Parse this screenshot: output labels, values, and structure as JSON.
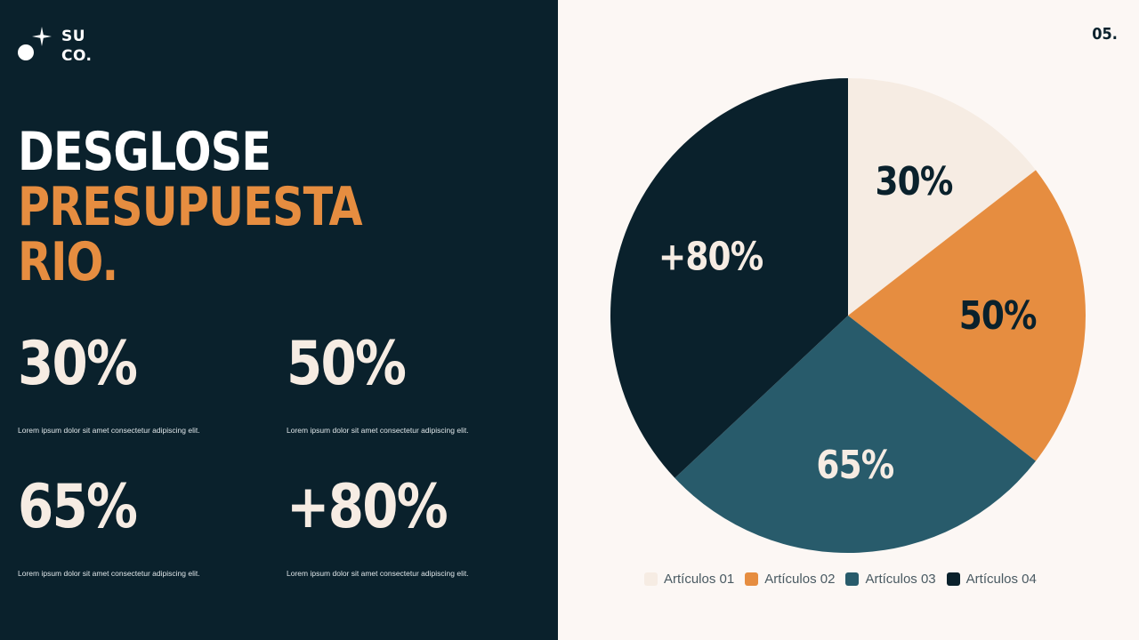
{
  "brand": {
    "line1": "SU",
    "line2": "CO."
  },
  "title": {
    "part1": "DESGLOSE ",
    "part2": "PRESUPUESTA",
    "part3": "RIO."
  },
  "page_number": "05.",
  "stats": [
    {
      "value": "30%",
      "desc": "Lorem ipsum dolor sit amet consectetur adipiscing elit."
    },
    {
      "value": "50%",
      "desc": "Lorem ipsum dolor sit amet consectetur adipiscing elit."
    },
    {
      "value": "65%",
      "desc": "Lorem ipsum dolor sit amet consectetur adipiscing elit."
    },
    {
      "value": "+80%",
      "desc": "Lorem ipsum dolor sit amet consectetur adipiscing elit."
    }
  ],
  "colors": {
    "dark": "#0a212c",
    "orange": "#e68d40",
    "teal": "#285b6b",
    "cream": "#f6ece3",
    "background": "#fcf7f4"
  },
  "chart_data": {
    "type": "pie",
    "slices": [
      {
        "label": "30%",
        "legend": "Artículos 01",
        "share": 0.145,
        "color": "#f6ece3",
        "text_color": "#0a212c"
      },
      {
        "label": "50%",
        "legend": "Artículos 02",
        "share": 0.21,
        "color": "#e68d40",
        "text_color": "#0a212c"
      },
      {
        "label": "65%",
        "legend": "Artículos 03",
        "share": 0.275,
        "color": "#285b6b",
        "text_color": "#f6ece3"
      },
      {
        "label": "+80%",
        "legend": "Artículos 04",
        "share": 0.37,
        "color": "#0a212c",
        "text_color": "#f6ece3"
      }
    ],
    "legend_position": "bottom"
  }
}
